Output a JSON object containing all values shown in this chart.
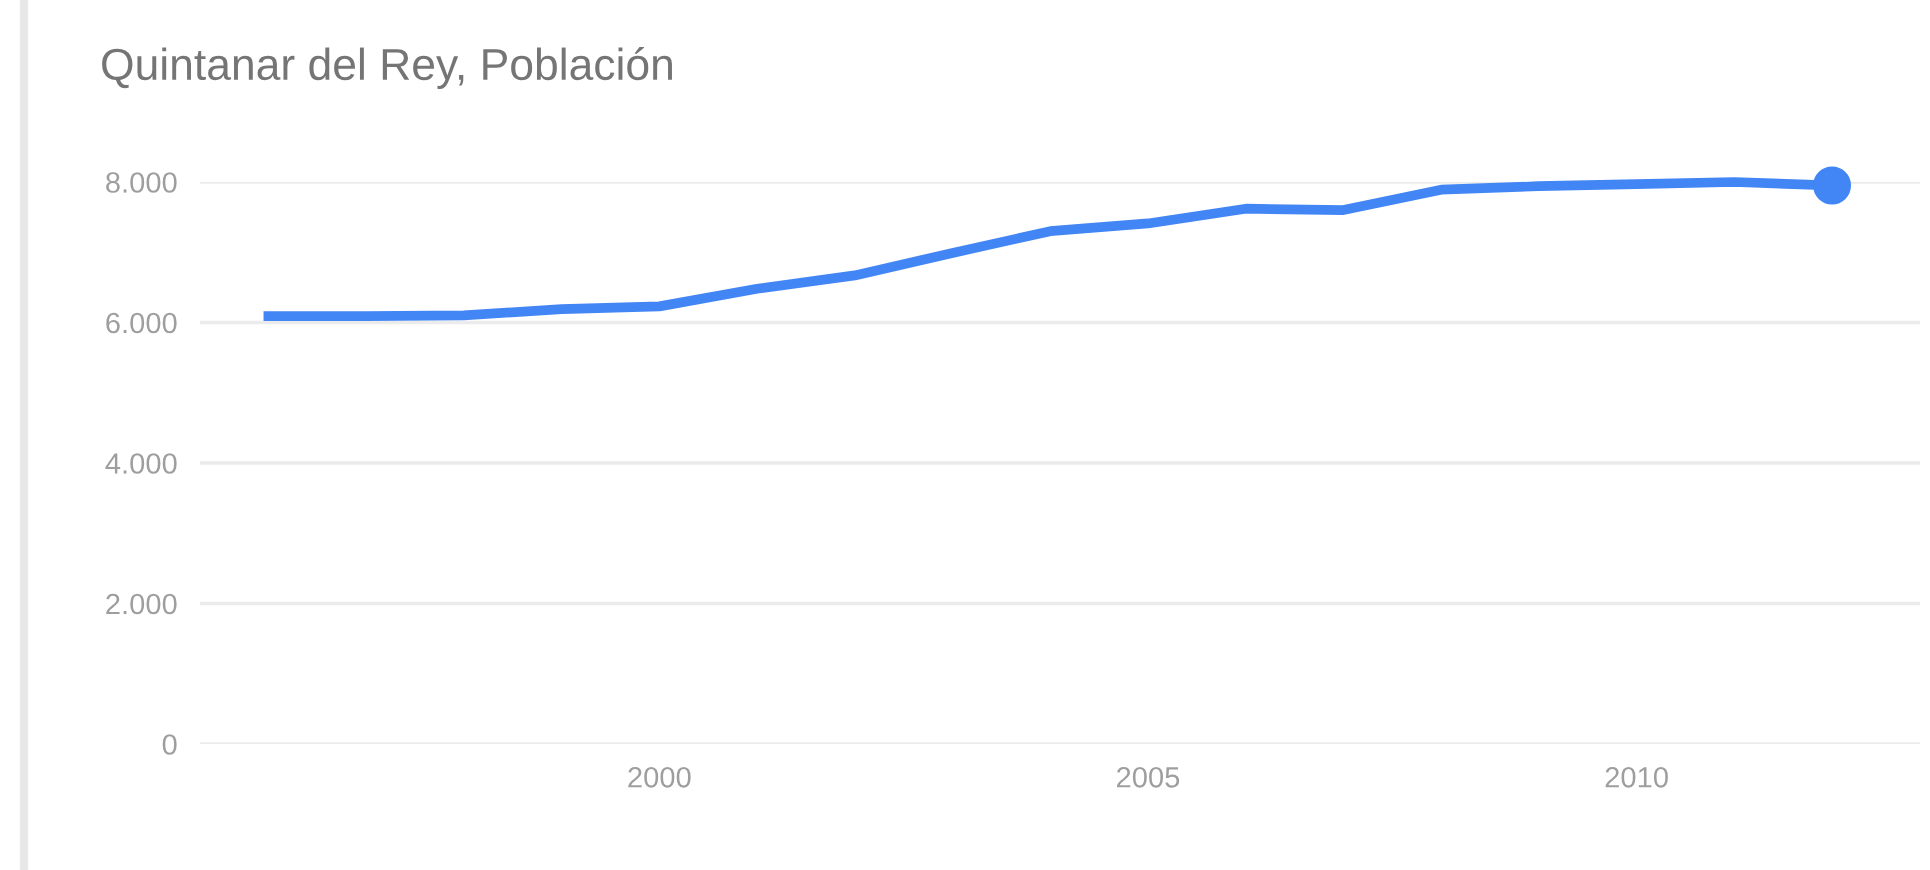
{
  "chart_data": {
    "type": "line",
    "title": "Quintanar del Rey, Población",
    "x": [
      1996,
      1997,
      1998,
      1999,
      2000,
      2001,
      2002,
      2003,
      2004,
      2005,
      2006,
      2007,
      2008,
      2009,
      2010,
      2011,
      2012
    ],
    "series": [
      {
        "color": "#4285f4",
        "values": [
          6090,
          6090,
          6100,
          6190,
          6230,
          6480,
          6670,
          6990,
          7300,
          7410,
          7620,
          7600,
          7890,
          7940,
          7970,
          8000,
          7950
        ]
      },
      {
        "type": "scatter",
        "color": "#4285f4",
        "x": [
          2012
        ],
        "values": [
          7950
        ]
      }
    ],
    "xlim": [
      1995.3,
      2012.9
    ],
    "xticks": [
      2000,
      2005,
      2010
    ],
    "ylim": [
      0,
      8000
    ],
    "yticks": [
      {
        "value": 0,
        "label": "0"
      },
      {
        "value": 2000,
        "label": "2.000"
      },
      {
        "value": 4000,
        "label": "4.000"
      },
      {
        "value": 6000,
        "label": "6.000"
      },
      {
        "value": 8000,
        "label": "8.000"
      }
    ],
    "grid": "y",
    "legend": false,
    "line_style": "solid"
  }
}
